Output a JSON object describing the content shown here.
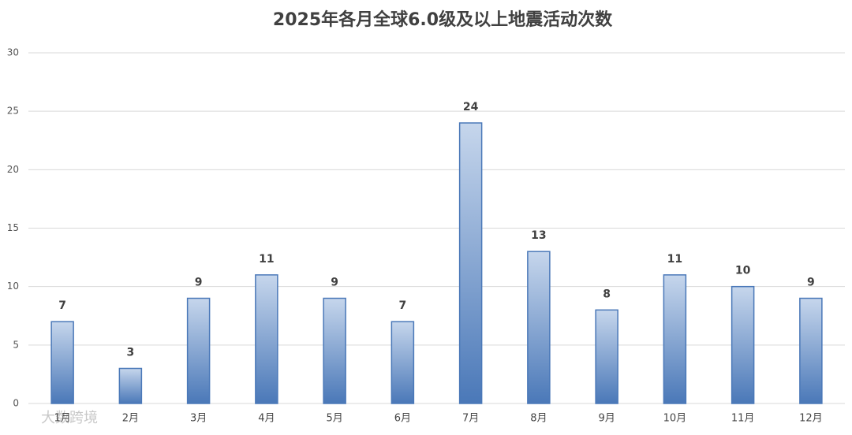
{
  "chart_data": {
    "type": "bar",
    "title": "2025年各月全球6.0级及以上地震活动次数",
    "categories": [
      "1月",
      "2月",
      "3月",
      "4月",
      "5月",
      "6月",
      "7月",
      "8月",
      "9月",
      "10月",
      "11月",
      "12月"
    ],
    "values": [
      7,
      3,
      9,
      11,
      9,
      7,
      24,
      13,
      8,
      11,
      10,
      9
    ],
    "color": "#4a78b8",
    "ylim": [
      0,
      30
    ],
    "yticks": [
      0,
      5,
      10,
      15,
      20,
      25,
      30
    ],
    "grid": true,
    "watermark": "大数跨境"
  }
}
